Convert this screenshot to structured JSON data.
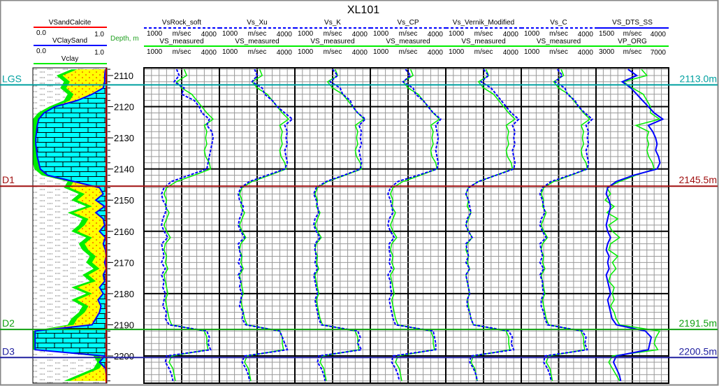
{
  "title": "XL101",
  "depth_header": "Depth, m",
  "colors": {
    "vs_model": "#0000ff",
    "vs_measured": "#00ee00",
    "calcite_fill": "#00ffff",
    "sand_fill": "#ffff00"
  },
  "lithology": {
    "headers": [
      {
        "name": "VSandCalcite",
        "min": "0.0",
        "max": "1.0",
        "color": "#ff0000"
      },
      {
        "name": "VClaySand",
        "min": "0.0",
        "max": "1.0",
        "color": "#0000ff"
      },
      {
        "name": "Vclay",
        "color": "#00ee00"
      }
    ]
  },
  "tops": [
    {
      "name": "LGS",
      "depth": 2113.0,
      "label": "2113.0m",
      "color": "#00a0a0"
    },
    {
      "name": "D1",
      "depth": 2145.5,
      "label": "2145.5m",
      "color": "#a01010"
    },
    {
      "name": "D2",
      "depth": 2191.5,
      "label": "2191.5m",
      "color": "#10a010"
    },
    {
      "name": "D3",
      "depth": 2200.5,
      "label": "2200.5m",
      "color": "#2020a0"
    }
  ],
  "chart_data": {
    "type": "line",
    "title": "XL101",
    "ylabel": "Depth, m",
    "ylim": [
      2107.5,
      2208.7
    ],
    "y_ticks": [
      "2110",
      "2120",
      "2130",
      "2140",
      "2150",
      "2160",
      "2170",
      "2180",
      "2190",
      "2200"
    ],
    "depths": [
      2108,
      2110,
      2112,
      2114,
      2116,
      2118,
      2120,
      2122,
      2124,
      2126,
      2128,
      2130,
      2132,
      2134,
      2136,
      2138,
      2140,
      2142,
      2144,
      2146,
      2148,
      2150,
      2152,
      2154,
      2156,
      2158,
      2160,
      2162,
      2164,
      2166,
      2168,
      2170,
      2172,
      2174,
      2176,
      2178,
      2180,
      2182,
      2184,
      2186,
      2188,
      2190,
      2192,
      2194,
      2196,
      2198,
      2200,
      2202,
      2204,
      2206,
      2208
    ],
    "lithology": {
      "vclay": [
        0.6,
        0.4,
        0.5,
        0.45,
        0.55,
        0.5,
        0.3,
        0.15,
        0.08,
        0.06,
        0.05,
        0.04,
        0.04,
        0.05,
        0.06,
        0.08,
        0.1,
        0.2,
        0.55,
        0.5,
        0.7,
        0.6,
        0.8,
        0.55,
        0.75,
        0.7,
        0.6,
        0.8,
        0.7,
        0.75,
        0.85,
        0.8,
        0.9,
        0.75,
        0.85,
        0.6,
        0.8,
        0.6,
        0.75,
        0.7,
        0.6,
        0.55,
        0.03,
        0.03,
        0.03,
        0.03,
        0.9,
        0.95,
        0.9,
        0.7,
        0.5
      ],
      "vclaysand": [
        0.98,
        0.97,
        0.97,
        0.95,
        0.8,
        0.6,
        0.3,
        0.15,
        0.08,
        0.06,
        0.05,
        0.04,
        0.04,
        0.05,
        0.06,
        0.08,
        0.1,
        0.2,
        0.55,
        0.9,
        0.95,
        0.85,
        0.97,
        0.85,
        0.95,
        0.97,
        0.9,
        0.98,
        0.95,
        0.98,
        0.99,
        0.97,
        0.99,
        0.95,
        0.97,
        0.9,
        0.95,
        0.88,
        0.92,
        0.9,
        0.85,
        0.8,
        0.03,
        0.03,
        0.03,
        0.03,
        0.97,
        0.9,
        0.98,
        0.99,
        0.99
      ]
    },
    "tracks": [
      {
        "name": "VsRock_soft",
        "unit": "m/sec",
        "min": "1000",
        "max": "4000",
        "dashed": true,
        "ref": {
          "name": "VS_measured",
          "unit": "m/sec",
          "min": "1000",
          "max": "4000"
        },
        "values": [
          2300,
          2400,
          2200,
          2600,
          2500,
          3000,
          3200,
          3300,
          3600,
          3500,
          3700,
          3750,
          3700,
          3650,
          3600,
          3550,
          3500,
          2800,
          2100,
          1800,
          1700,
          1750,
          1900,
          1850,
          1750,
          1700,
          1800,
          1950,
          1700,
          1750,
          1800,
          1700,
          1850,
          1700,
          1800,
          1750,
          1850,
          1800,
          1750,
          1900,
          1850,
          2000,
          3500,
          3600,
          3550,
          3650,
          1900,
          1850,
          2000,
          2100,
          2150
        ],
        "ref_values": [
          2600,
          2700,
          2300,
          2500,
          2900,
          3100,
          3300,
          3500,
          3750,
          3400,
          3500,
          3450,
          3500,
          3400,
          3450,
          3600,
          3650,
          3000,
          2300,
          1900,
          1800,
          1900,
          1850,
          2000,
          1900,
          1800,
          1900,
          2050,
          1850,
          1800,
          1900,
          1850,
          1950,
          1800,
          1850,
          1900,
          1950,
          1850,
          1900,
          1950,
          2000,
          2100,
          3400,
          3500,
          3500,
          3550,
          2100,
          2000,
          2150,
          2200,
          2250
        ]
      },
      {
        "name": "Vs_Xu",
        "unit": "m/sec",
        "min": "1000",
        "max": "4000",
        "dashed": true,
        "ref": {
          "name": "VS_measured",
          "unit": "m/sec",
          "min": "1000",
          "max": "4000"
        },
        "values": [
          2400,
          2500,
          2300,
          2700,
          2800,
          3100,
          3300,
          3600,
          3900,
          3600,
          3700,
          3650,
          3700,
          3600,
          3650,
          3700,
          3600,
          2900,
          2200,
          1850,
          1750,
          1800,
          1950,
          1900,
          1800,
          1750,
          1850,
          2000,
          1750,
          1800,
          1850,
          1750,
          1900,
          1750,
          1850,
          1800,
          1900,
          1850,
          1800,
          1950,
          1900,
          2050,
          3400,
          3500,
          3600,
          3700,
          2000,
          1900,
          2050,
          2150,
          2200
        ],
        "ref_values": [
          2600,
          2700,
          2300,
          2500,
          2900,
          3100,
          3300,
          3500,
          3750,
          3400,
          3500,
          3450,
          3500,
          3400,
          3450,
          3600,
          3650,
          3000,
          2300,
          1900,
          1800,
          1900,
          1850,
          2000,
          1900,
          1800,
          1900,
          2050,
          1850,
          1800,
          1900,
          1850,
          1950,
          1800,
          1850,
          1900,
          1950,
          1850,
          1900,
          1950,
          2000,
          2100,
          3400,
          3500,
          3500,
          3550,
          2100,
          2000,
          2150,
          2200,
          2250
        ]
      },
      {
        "name": "Vs_K",
        "unit": "m/sec",
        "min": "1000",
        "max": "4000",
        "dashed": true,
        "ref": {
          "name": "VS_measured",
          "unit": "m/sec",
          "min": "1000",
          "max": "4000"
        },
        "values": [
          2500,
          2700,
          2400,
          2800,
          2900,
          3200,
          3300,
          3500,
          3800,
          3550,
          3650,
          3600,
          3650,
          3550,
          3600,
          3650,
          3600,
          2950,
          2250,
          1850,
          1750,
          1850,
          1900,
          1950,
          1800,
          1750,
          1850,
          2000,
          1800,
          1800,
          1850,
          1800,
          1900,
          1750,
          1800,
          1850,
          1900,
          1800,
          1850,
          1900,
          1950,
          2050,
          3500,
          3600,
          3500,
          3650,
          1950,
          1900,
          2050,
          2150,
          2200
        ],
        "ref_values": [
          2600,
          2700,
          2300,
          2500,
          2900,
          3100,
          3300,
          3500,
          3750,
          3400,
          3500,
          3450,
          3500,
          3400,
          3450,
          3600,
          3650,
          3000,
          2300,
          1900,
          1800,
          1900,
          1850,
          2000,
          1900,
          1800,
          1900,
          2050,
          1850,
          1800,
          1900,
          1850,
          1950,
          1800,
          1850,
          1900,
          1950,
          1850,
          1900,
          1950,
          2000,
          2100,
          3400,
          3500,
          3500,
          3550,
          2100,
          2000,
          2150,
          2200,
          2250
        ]
      },
      {
        "name": "Vs_CP",
        "unit": "m/sec",
        "min": "1000",
        "max": "4000",
        "dashed": true,
        "ref": {
          "name": "VS_measured",
          "unit": "m/sec",
          "min": "1000",
          "max": "4000"
        },
        "values": [
          2400,
          2600,
          2300,
          2700,
          2800,
          3100,
          3300,
          3500,
          3800,
          3600,
          3650,
          3700,
          3650,
          3600,
          3650,
          3700,
          3650,
          2900,
          2100,
          1800,
          1700,
          1800,
          1850,
          1900,
          1750,
          1700,
          1800,
          1950,
          1750,
          1750,
          1800,
          1750,
          1850,
          1700,
          1800,
          1800,
          1850,
          1750,
          1800,
          1850,
          1900,
          2000,
          3500,
          3550,
          3600,
          3600,
          1900,
          1850,
          2000,
          2100,
          2150
        ],
        "ref_values": [
          2600,
          2700,
          2300,
          2500,
          2900,
          3100,
          3300,
          3500,
          3750,
          3400,
          3500,
          3450,
          3500,
          3400,
          3450,
          3600,
          3650,
          3000,
          2300,
          1900,
          1800,
          1900,
          1850,
          2000,
          1900,
          1800,
          1900,
          2050,
          1850,
          1800,
          1900,
          1850,
          1950,
          1800,
          1850,
          1900,
          1950,
          1850,
          1900,
          1950,
          2000,
          2100,
          3400,
          3500,
          3500,
          3550,
          2100,
          2000,
          2150,
          2200,
          2250
        ]
      },
      {
        "name": "Vs_Vernik_Modified",
        "unit": "m/sec",
        "min": "1000",
        "max": "4000",
        "dashed": true,
        "ref": {
          "name": "VS_measured",
          "unit": "m/sec",
          "min": "1000",
          "max": "4000"
        },
        "values": [
          2500,
          2700,
          2400,
          2800,
          3000,
          3200,
          3400,
          3600,
          3900,
          3650,
          3750,
          3700,
          3750,
          3650,
          3700,
          3750,
          3700,
          3000,
          2300,
          1900,
          1800,
          1900,
          1950,
          2000,
          1850,
          1800,
          1900,
          2050,
          1800,
          1850,
          1900,
          1800,
          1950,
          1800,
          1850,
          1900,
          1950,
          1850,
          1850,
          1950,
          2000,
          2100,
          3500,
          3650,
          3600,
          3700,
          2000,
          1950,
          2100,
          2200,
          2250
        ],
        "ref_values": [
          2600,
          2700,
          2300,
          2500,
          2900,
          3100,
          3300,
          3500,
          3750,
          3400,
          3500,
          3450,
          3500,
          3400,
          3450,
          3600,
          3650,
          3000,
          2300,
          1900,
          1800,
          1900,
          1850,
          2000,
          1900,
          1800,
          1900,
          2050,
          1850,
          1800,
          1900,
          1850,
          1950,
          1800,
          1850,
          1900,
          1950,
          1850,
          1900,
          1950,
          2000,
          2100,
          3400,
          3500,
          3500,
          3550,
          2100,
          2000,
          2150,
          2200,
          2250
        ]
      },
      {
        "name": "Vs_C",
        "unit": "m/sec",
        "min": "1000",
        "max": "4000",
        "dashed": true,
        "ref": {
          "name": "VS_measured",
          "unit": "m/sec",
          "min": "1000",
          "max": "4000"
        },
        "values": [
          2450,
          2650,
          2350,
          2750,
          2850,
          3150,
          3300,
          3550,
          3850,
          3600,
          3700,
          3650,
          3700,
          3600,
          3650,
          3700,
          3650,
          2950,
          2200,
          1850,
          1750,
          1850,
          1900,
          1950,
          1800,
          1750,
          1850,
          2000,
          1750,
          1800,
          1850,
          1750,
          1900,
          1750,
          1850,
          1850,
          1900,
          1800,
          1800,
          1900,
          1950,
          2050,
          3450,
          3600,
          3550,
          3650,
          1950,
          1900,
          2050,
          2150,
          2200
        ],
        "ref_values": [
          2600,
          2700,
          2300,
          2500,
          2900,
          3100,
          3300,
          3500,
          3750,
          3400,
          3500,
          3450,
          3500,
          3400,
          3450,
          3600,
          3650,
          3000,
          2300,
          1900,
          1800,
          1900,
          1850,
          2000,
          1900,
          1800,
          1900,
          2050,
          1850,
          1800,
          1900,
          1850,
          1950,
          1800,
          1850,
          1900,
          1950,
          1850,
          1900,
          1950,
          2000,
          2100,
          3400,
          3500,
          3500,
          3550,
          2100,
          2000,
          2150,
          2200,
          2250
        ]
      },
      {
        "name": "VS_DTS_SS",
        "unit": "m/sec",
        "min": "1500",
        "max": "4000",
        "dashed": false,
        "ref": {
          "name": "VP_ORG",
          "unit": "m/sec",
          "min": "3000",
          "max": "7000"
        },
        "values": [
          2600,
          2900,
          2400,
          2700,
          2900,
          3100,
          3300,
          3500,
          3800,
          3300,
          3450,
          3550,
          3600,
          3550,
          3650,
          3700,
          3600,
          2800,
          2200,
          1900,
          1850,
          1950,
          2000,
          1950,
          1900,
          1850,
          1900,
          2000,
          1900,
          1850,
          1950,
          1900,
          1950,
          1850,
          1900,
          1950,
          2000,
          1900,
          1950,
          2000,
          2050,
          2200,
          3200,
          3400,
          3350,
          3300,
          2200,
          2100,
          2200,
          2300,
          2350
        ],
        "ref_values": [
          5500,
          5800,
          4500,
          5000,
          5600,
          5800,
          6000,
          6000,
          6500,
          5200,
          5900,
          5800,
          5900,
          5800,
          5900,
          6100,
          6200,
          5200,
          4300,
          3600,
          3800,
          3500,
          4000,
          3600,
          4200,
          3700,
          3900,
          4300,
          3800,
          3700,
          4200,
          3900,
          4100,
          3800,
          3700,
          4000,
          3900,
          4000,
          3800,
          4000,
          4100,
          4300,
          6500,
          6300,
          6200,
          6400,
          3900,
          3700,
          3900,
          4100,
          4300
        ]
      }
    ]
  }
}
